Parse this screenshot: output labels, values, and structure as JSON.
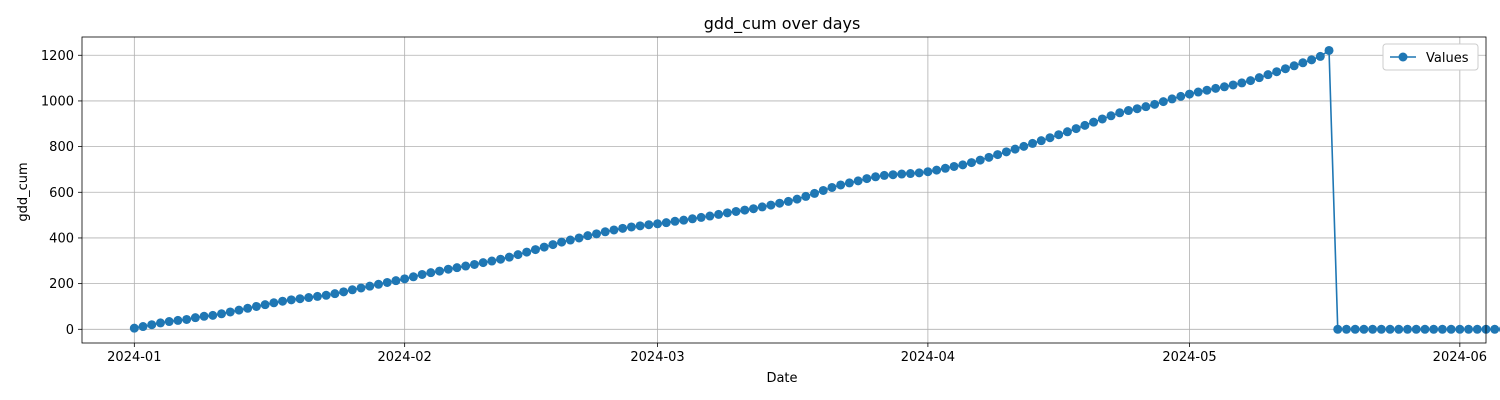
{
  "chart_data": {
    "type": "line",
    "title": "gdd_cum over days",
    "xlabel": "Date",
    "ylabel": "gdd_cum",
    "x_start": "2024-01-01",
    "x_end": "2024-05-30",
    "xlim": [
      "2023-12-26",
      "2024-06-04"
    ],
    "ylim": [
      -60,
      1280
    ],
    "x_ticks": [
      "2024-01",
      "2024-02",
      "2024-03",
      "2024-04",
      "2024-05",
      "2024-06"
    ],
    "y_ticks": [
      0,
      200,
      400,
      600,
      800,
      1000,
      1200
    ],
    "grid": true,
    "legend_position": "top-right",
    "series": [
      {
        "name": "Values",
        "color": "#1f77b4",
        "marker": "circle",
        "values": [
          5,
          12,
          20,
          28,
          34,
          39,
          43,
          51,
          57,
          61,
          68,
          76,
          84,
          92,
          100,
          108,
          116,
          123,
          129,
          134,
          139,
          144,
          149,
          156,
          164,
          173,
          181,
          189,
          197,
          205,
          213,
          221,
          230,
          240,
          248,
          255,
          263,
          270,
          277,
          284,
          292,
          299,
          307,
          316,
          327,
          338,
          349,
          360,
          371,
          382,
          391,
          400,
          410,
          418,
          427,
          435,
          442,
          448,
          453,
          458,
          462,
          467,
          473,
          478,
          484,
          490,
          496,
          503,
          510,
          516,
          522,
          528,
          536,
          544,
          552,
          560,
          570,
          582,
          595,
          608,
          621,
          632,
          641,
          650,
          660,
          668,
          674,
          677,
          680,
          682,
          685,
          690,
          697,
          705,
          713,
          720,
          730,
          741,
          753,
          765,
          777,
          789,
          801,
          814,
          826,
          839,
          852,
          865,
          879,
          893,
          907,
          921,
          935,
          948,
          958,
          966,
          975,
          985,
          997,
          1009,
          1020,
          1030,
          1039,
          1047,
          1055,
          1062,
          1070,
          1079,
          1089,
          1102,
          1115,
          1128,
          1141,
          1154,
          1167,
          1180,
          1195,
          1221,
          0,
          0,
          0,
          0,
          0,
          0,
          0,
          0,
          0,
          0,
          0,
          0,
          0,
          0,
          0,
          0,
          0,
          0,
          0,
          0
        ]
      }
    ]
  }
}
